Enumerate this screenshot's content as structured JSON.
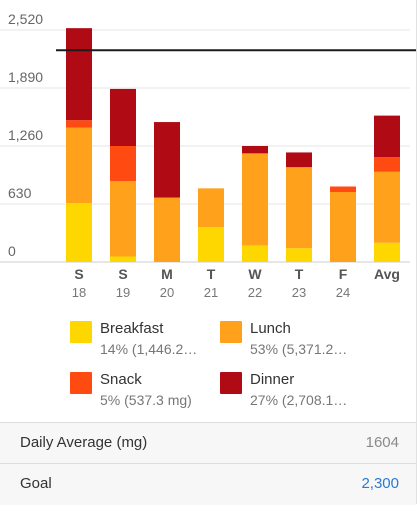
{
  "chart_data": {
    "type": "bar",
    "stacked": true,
    "categories": [
      "S",
      "S",
      "M",
      "T",
      "W",
      "T",
      "F",
      "Avg"
    ],
    "dates": [
      "18",
      "19",
      "20",
      "21",
      "22",
      "23",
      "24",
      ""
    ],
    "ylim": [
      0,
      2520
    ],
    "yticks": [
      "2,520",
      "1,890",
      "1,260",
      "630",
      "0"
    ],
    "ytick_values": [
      2520,
      1890,
      1260,
      630,
      0
    ],
    "goal_line": 2300,
    "grid": true,
    "series": [
      {
        "name": "Breakfast",
        "color": "#ffd700",
        "values": [
          640,
          60,
          0,
          380,
          180,
          150,
          0,
          210
        ]
      },
      {
        "name": "Lunch",
        "color": "#ffa11a",
        "values": [
          820,
          820,
          700,
          420,
          1000,
          880,
          760,
          770
        ]
      },
      {
        "name": "Snack",
        "color": "#ff4a12",
        "values": [
          80,
          380,
          0,
          0,
          0,
          0,
          60,
          160
        ]
      },
      {
        "name": "Dinner",
        "color": "#b00a14",
        "values": [
          1000,
          620,
          820,
          0,
          80,
          160,
          0,
          450
        ]
      }
    ]
  },
  "legend": [
    {
      "name": "Breakfast",
      "detail": "14% (1,446.2…",
      "color": "#ffd700"
    },
    {
      "name": "Lunch",
      "detail": "53% (5,371.2…",
      "color": "#ffa11a"
    },
    {
      "name": "Snack",
      "detail": "5% (537.3 mg)",
      "color": "#ff4a12"
    },
    {
      "name": "Dinner",
      "detail": "27% (2,708.1…",
      "color": "#b00a14"
    }
  ],
  "summary": {
    "daily_average_label": "Daily Average (mg)",
    "daily_average_value": "1604",
    "goal_label": "Goal",
    "goal_value": "2,300"
  }
}
